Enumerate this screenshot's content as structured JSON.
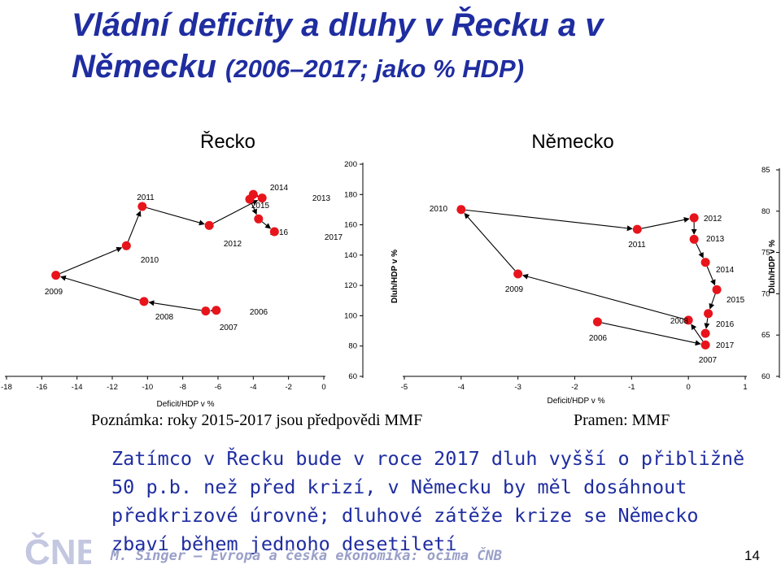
{
  "slide": {
    "title_main": "Vládní deficity a dluhy v Řecku a v Německu",
    "title_sub": "(2006–2017; jako % HDP)",
    "note": "Poznámka: roky 2015-2017 jsou předpovědi MMF",
    "source": "Pramen: MMF",
    "body": "Zatímco v Řecku bude v roce 2017 dluh vyšší o přibližně 50 p.b. než před krizí, v Německu by měl dosáhnout předkrizové úrovně; dluhové zátěže krize se Německo zbaví během jednoho desetiletí",
    "footer": "M. Singer – Evropa a česká ekonomika: očima ČNB",
    "page_number": "14",
    "logo_text": "ČNB"
  },
  "chart_data": [
    {
      "type": "scatter",
      "title": "Řecko",
      "xlabel": "Deficit/HDP v %",
      "ylabel": "Dluh/HDP v %",
      "xlim": [
        -18,
        0
      ],
      "ylim": [
        60,
        200
      ],
      "xticks": [
        -18,
        -16,
        -14,
        -12,
        -10,
        -8,
        -6,
        -4,
        -2,
        0
      ],
      "yticks": [
        60,
        80,
        100,
        120,
        140,
        160,
        180,
        200
      ],
      "marker_color": "#e8141c",
      "points": [
        {
          "label": "2006",
          "x": -6.1,
          "y": 103.6
        },
        {
          "label": "2007",
          "x": -6.7,
          "y": 103.1
        },
        {
          "label": "2008",
          "x": -10.2,
          "y": 109.4
        },
        {
          "label": "2009",
          "x": -15.2,
          "y": 126.7
        },
        {
          "label": "2010",
          "x": -11.2,
          "y": 146.2
        },
        {
          "label": "2011",
          "x": -10.3,
          "y": 172.1
        },
        {
          "label": "2012",
          "x": -6.5,
          "y": 159.6
        },
        {
          "label": "2013",
          "x": -3.5,
          "y": 177.7
        },
        {
          "label": "2014",
          "x": -4.0,
          "y": 180.1
        },
        {
          "label": "2015",
          "x": -4.2,
          "y": 176.9
        },
        {
          "label": "2016",
          "x": -3.7,
          "y": 163.9
        },
        {
          "label": "2017",
          "x": -2.8,
          "y": 155.5
        }
      ]
    },
    {
      "type": "scatter",
      "title": "Německo",
      "xlabel": "Deficit/HDP v %",
      "ylabel": "Dluh/HDP v %",
      "xlim": [
        -5,
        1
      ],
      "ylim": [
        60,
        85
      ],
      "xticks": [
        -5,
        -4,
        -3,
        -2,
        -1,
        0,
        1
      ],
      "yticks": [
        60,
        65,
        70,
        75,
        80,
        85
      ],
      "marker_color": "#e8141c",
      "points": [
        {
          "label": "2006",
          "x": -1.6,
          "y": 66.6
        },
        {
          "label": "2007",
          "x": 0.3,
          "y": 63.8
        },
        {
          "label": "2008",
          "x": 0.0,
          "y": 66.8
        },
        {
          "label": "2009",
          "x": -3.0,
          "y": 72.4
        },
        {
          "label": "2010",
          "x": -4.0,
          "y": 80.2
        },
        {
          "label": "2011",
          "x": -0.9,
          "y": 77.8
        },
        {
          "label": "2012",
          "x": 0.1,
          "y": 79.2
        },
        {
          "label": "2013",
          "x": 0.1,
          "y": 76.6
        },
        {
          "label": "2014",
          "x": 0.3,
          "y": 73.8
        },
        {
          "label": "2015",
          "x": 0.5,
          "y": 70.5
        },
        {
          "label": "2016",
          "x": 0.35,
          "y": 67.6
        },
        {
          "label": "2017",
          "x": 0.3,
          "y": 65.2
        }
      ]
    }
  ]
}
